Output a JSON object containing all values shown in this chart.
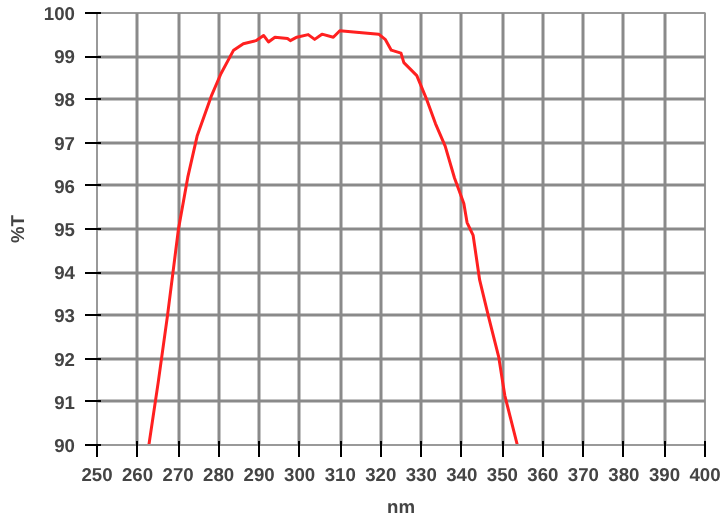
{
  "chart_data": {
    "type": "line",
    "xlabel": "nm",
    "ylabel": "%T",
    "xlim": [
      250,
      400
    ],
    "ylim": [
      90,
      100
    ],
    "xticks": [
      250,
      260,
      270,
      280,
      290,
      300,
      310,
      320,
      330,
      340,
      350,
      360,
      370,
      380,
      390,
      400
    ],
    "yticks": [
      90,
      91,
      92,
      93,
      94,
      95,
      96,
      97,
      98,
      99,
      100
    ],
    "grid": true,
    "marker": "none",
    "line_style": "solid",
    "series": [
      {
        "color": "#ff2020",
        "x": [
          262.8,
          265.1,
          267.4,
          270.1,
          272.4,
          274.7,
          278.3,
          280.6,
          283.7,
          286.1,
          289.2,
          291.1,
          292.3,
          293.9,
          297.0,
          297.7,
          299.3,
          302.1,
          303.7,
          305.5,
          308.3,
          309.9,
          313.3,
          319.5,
          321.1,
          322.6,
          325.0,
          325.7,
          328.9,
          331.2,
          333.5,
          335.9,
          338.2,
          340.5,
          341.3,
          342.8,
          344.4,
          346.7,
          349.1,
          350.6,
          353.7
        ],
        "values": [
          90.0,
          91.45,
          93.0,
          95.0,
          96.2,
          97.15,
          98.1,
          98.6,
          99.14,
          99.29,
          99.36,
          99.48,
          99.33,
          99.44,
          99.41,
          99.36,
          99.44,
          99.5,
          99.39,
          99.51,
          99.44,
          99.59,
          99.56,
          99.51,
          99.39,
          99.14,
          99.07,
          98.85,
          98.55,
          98.03,
          97.44,
          96.92,
          96.18,
          95.59,
          95.15,
          94.85,
          93.82,
          92.93,
          92.04,
          91.15,
          90.0
        ]
      }
    ]
  }
}
